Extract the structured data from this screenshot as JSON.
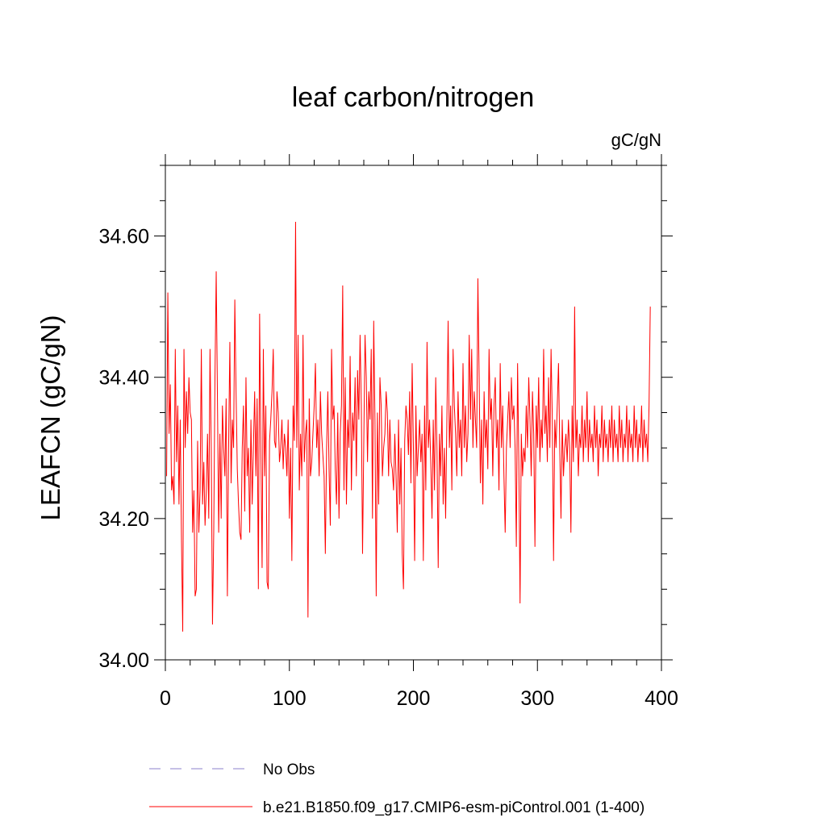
{
  "chart_data": {
    "type": "line",
    "title": "leaf carbon/nitrogen",
    "units_label": "gC/gN",
    "ylabel": "LEAFCN  (gC/gN)",
    "xlabel": "",
    "xlim": [
      0,
      400
    ],
    "ylim": [
      34.0,
      34.7
    ],
    "x_ticks": [
      0,
      100,
      200,
      300,
      400
    ],
    "x_tick_labels": [
      "0",
      "100",
      "200",
      "300",
      "400"
    ],
    "y_ticks": [
      34.0,
      34.2,
      34.4,
      34.6
    ],
    "y_tick_labels": [
      "34.00",
      "34.20",
      "34.40",
      "34.60"
    ],
    "y_minor_step": 0.05,
    "x_minor_step": 20,
    "grid": false,
    "legend_position": "bottom",
    "series": [
      {
        "name": "b.e21.B1850.f09_g17.CMIP6-esm-piControl.001 (1-400)",
        "color": "#ff0000",
        "style": "solid",
        "x_start": 1,
        "y": [
          34.26,
          34.52,
          34.32,
          34.39,
          34.24,
          34.26,
          34.22,
          34.44,
          34.28,
          34.36,
          34.22,
          34.34,
          34.17,
          34.04,
          34.44,
          34.3,
          34.38,
          34.32,
          34.4,
          34.35,
          34.34,
          34.18,
          34.24,
          34.09,
          34.1,
          34.31,
          34.18,
          34.24,
          34.44,
          34.22,
          34.28,
          34.19,
          34.24,
          34.32,
          34.2,
          34.44,
          34.3,
          34.05,
          34.18,
          34.4,
          34.55,
          34.37,
          34.18,
          34.32,
          34.2,
          34.36,
          34.3,
          34.26,
          34.37,
          34.09,
          34.3,
          34.45,
          34.25,
          34.34,
          34.3,
          34.51,
          34.38,
          34.27,
          34.22,
          34.18,
          34.17,
          34.3,
          34.36,
          34.21,
          34.4,
          34.26,
          34.3,
          34.18,
          34.34,
          34.22,
          34.3,
          34.38,
          34.26,
          34.37,
          34.1,
          34.49,
          34.3,
          34.13,
          34.44,
          34.26,
          34.36,
          34.11,
          34.1,
          34.31,
          34.34,
          34.38,
          34.44,
          34.31,
          34.3,
          34.38,
          34.35,
          34.28,
          34.3,
          34.34,
          34.27,
          34.32,
          34.3,
          34.26,
          34.34,
          34.2,
          34.3,
          34.14,
          34.36,
          34.31,
          34.62,
          34.3,
          34.46,
          34.24,
          34.32,
          34.26,
          34.46,
          34.28,
          34.32,
          34.34,
          34.06,
          34.37,
          34.26,
          34.28,
          34.32,
          34.36,
          34.42,
          34.3,
          34.34,
          34.26,
          34.38,
          34.32,
          34.29,
          34.26,
          34.15,
          34.3,
          34.38,
          34.27,
          34.19,
          34.44,
          34.34,
          34.36,
          34.27,
          34.22,
          34.35,
          34.2,
          34.32,
          34.36,
          34.53,
          34.24,
          34.4,
          34.22,
          34.34,
          34.3,
          34.43,
          34.24,
          34.35,
          34.31,
          34.4,
          34.26,
          34.41,
          34.34,
          34.46,
          34.36,
          34.15,
          34.31,
          34.46,
          34.4,
          34.28,
          34.38,
          34.34,
          34.44,
          34.2,
          34.48,
          34.34,
          34.09,
          34.35,
          34.22,
          34.4,
          34.36,
          34.26,
          34.3,
          34.32,
          34.38,
          34.35,
          34.26,
          34.34,
          34.28,
          34.27,
          34.24,
          34.32,
          34.26,
          34.18,
          34.34,
          34.22,
          34.3,
          34.15,
          34.1,
          34.31,
          34.36,
          34.34,
          34.29,
          34.38,
          34.25,
          34.42,
          34.3,
          34.14,
          34.36,
          34.26,
          34.3,
          34.34,
          34.28,
          34.32,
          34.14,
          34.36,
          34.24,
          34.45,
          34.3,
          34.34,
          34.28,
          34.2,
          34.34,
          34.24,
          34.4,
          34.3,
          34.13,
          34.32,
          34.26,
          34.36,
          34.22,
          34.3,
          34.2,
          34.34,
          34.48,
          34.3,
          34.36,
          34.24,
          34.44,
          34.36,
          34.32,
          34.26,
          34.38,
          34.3,
          34.34,
          34.26,
          34.42,
          34.3,
          34.36,
          34.28,
          34.32,
          34.46,
          34.34,
          34.44,
          34.3,
          34.38,
          34.34,
          34.3,
          34.54,
          34.4,
          34.25,
          34.34,
          34.22,
          34.38,
          34.3,
          34.34,
          34.27,
          34.44,
          34.34,
          34.37,
          34.26,
          34.36,
          34.4,
          34.3,
          34.34,
          34.24,
          34.42,
          34.3,
          34.36,
          34.26,
          34.18,
          34.3,
          34.34,
          34.38,
          34.3,
          34.4,
          34.34,
          34.36,
          34.3,
          34.16,
          34.42,
          34.28,
          34.08,
          34.32,
          34.26,
          34.3,
          34.28,
          34.36,
          34.3,
          34.4,
          34.34,
          34.26,
          34.38,
          34.32,
          34.16,
          34.36,
          34.3,
          34.4,
          34.28,
          34.34,
          34.3,
          34.44,
          34.32,
          34.36,
          34.28,
          34.4,
          34.3,
          34.44,
          34.34,
          34.14,
          34.34,
          34.3,
          34.36,
          34.42,
          34.3,
          34.2,
          34.34,
          34.26,
          34.3,
          34.32,
          34.28,
          34.34,
          34.3,
          34.18,
          34.36,
          34.28,
          34.5,
          34.3,
          34.34,
          34.26,
          34.32,
          34.3,
          34.36,
          34.28,
          34.34,
          34.3,
          34.38,
          34.28,
          34.34,
          34.3,
          34.32,
          34.28,
          34.36,
          34.3,
          34.34,
          34.26,
          34.32,
          34.3,
          34.36,
          34.28,
          34.34,
          34.3,
          34.32,
          34.28,
          34.34,
          34.3,
          34.36,
          34.28,
          34.34,
          34.3,
          34.32,
          34.28,
          34.36,
          34.3,
          34.34,
          34.28,
          34.32,
          34.3,
          34.36,
          34.28,
          34.34,
          34.3,
          34.32,
          34.28,
          34.36,
          34.3,
          34.34,
          34.28,
          34.32,
          34.3,
          34.36,
          34.28,
          34.34,
          34.3,
          34.32,
          34.28,
          34.36,
          34.5
        ]
      }
    ],
    "legend": [
      {
        "label": "No Obs",
        "color": "#8c82cc",
        "style": "dashed"
      },
      {
        "label": "b.e21.B1850.f09_g17.CMIP6-esm-piControl.001 (1-400)",
        "color": "#ff0000",
        "style": "solid"
      }
    ]
  }
}
